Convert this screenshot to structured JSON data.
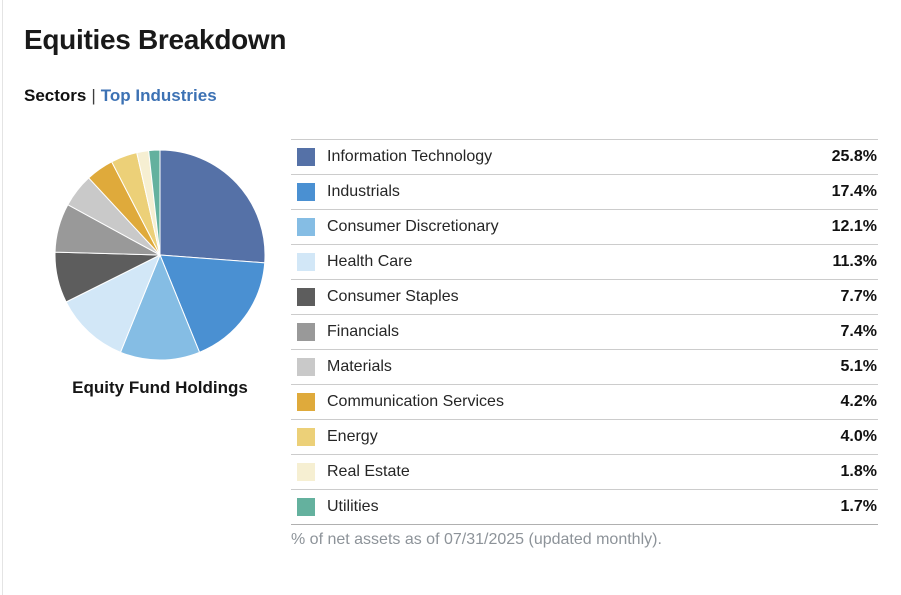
{
  "header": {
    "title": "Equities Breakdown"
  },
  "tabs": {
    "sectors_label": "Sectors",
    "separator": "|",
    "top_industries_label": "Top Industries"
  },
  "chart_data": {
    "type": "pie",
    "title": "Equity Fund Holdings",
    "legend_position": "right",
    "start_angle_deg": 0,
    "direction": "clockwise",
    "categories": [
      "Information Technology",
      "Industrials",
      "Consumer Discretionary",
      "Health Care",
      "Consumer Staples",
      "Financials",
      "Materials",
      "Communication Services",
      "Energy",
      "Real Estate",
      "Utilities"
    ],
    "values": [
      25.8,
      17.4,
      12.1,
      11.3,
      7.7,
      7.4,
      5.1,
      4.2,
      4.0,
      1.8,
      1.7
    ],
    "value_labels": [
      "25.8%",
      "17.4%",
      "12.1%",
      "11.3%",
      "7.7%",
      "7.4%",
      "5.1%",
      "4.2%",
      "4.0%",
      "1.8%",
      "1.7%"
    ],
    "colors": [
      "#5571a7",
      "#4a90d2",
      "#85bde4",
      "#d2e7f7",
      "#5d5d5d",
      "#999999",
      "#c9c9c9",
      "#dfaa3b",
      "#ecd078",
      "#f6efd2",
      "#64b19e"
    ],
    "unit": "%"
  },
  "footer": {
    "note": "% of net assets as of 07/31/2025 (updated monthly)."
  },
  "colors": {
    "link_blue": "#3d72b4",
    "row_border": "#cccccc",
    "table_bottom_border": "#b0b0b0",
    "footnote_text": "#8d9399"
  }
}
